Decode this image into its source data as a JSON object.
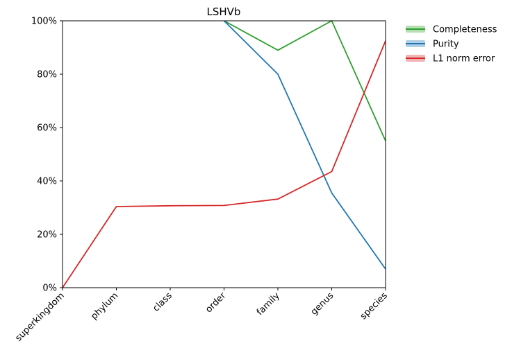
{
  "chart_data": {
    "type": "line",
    "title": "LSHVb",
    "xlabel": "",
    "ylabel": "",
    "categories": [
      "superkingdom",
      "phylum",
      "class",
      "order",
      "family",
      "genus",
      "species"
    ],
    "ylim": [
      0,
      100
    ],
    "y_ticks": [
      "0%",
      "20%",
      "40%",
      "60%",
      "80%",
      "100%"
    ],
    "grid": false,
    "legend_position": "outside-top-right",
    "series": [
      {
        "name": "Completeness",
        "color": "#2ca02c",
        "values": [
          null,
          null,
          null,
          100,
          89,
          100,
          55
        ]
      },
      {
        "name": "Purity",
        "color": "#1f77b4",
        "values": [
          null,
          null,
          null,
          100,
          80,
          35.5,
          7
        ]
      },
      {
        "name": "L1 norm error",
        "color": "#d62728",
        "values": [
          0,
          30.4,
          30.7,
          30.8,
          33.2,
          43.5,
          92.5
        ]
      }
    ]
  }
}
